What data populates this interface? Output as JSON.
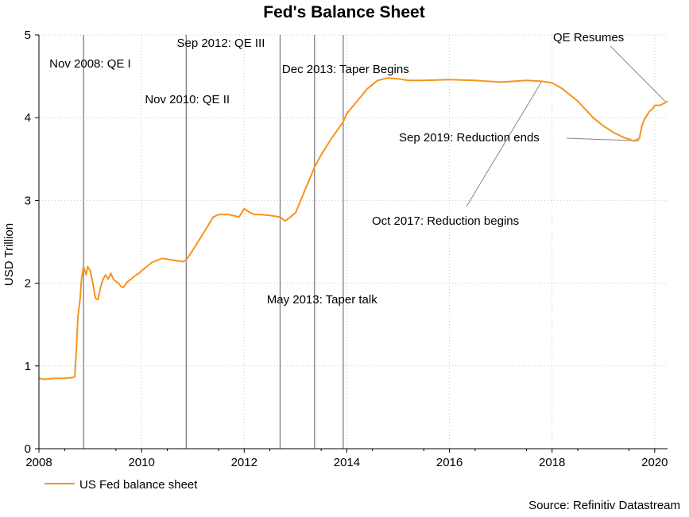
{
  "chart_data": {
    "type": "line",
    "title": "Fed's Balance Sheet",
    "xlabel": "",
    "ylabel": "USD Trillion",
    "xlim": [
      2008.0,
      2020.25
    ],
    "ylim": [
      0,
      5
    ],
    "xticks": [
      2008,
      2010,
      2012,
      2014,
      2016,
      2018,
      2020
    ],
    "yticks": [
      0,
      1,
      2,
      3,
      4,
      5
    ],
    "grid": true,
    "legend_position": "bottom-left",
    "source": "Source: Refinitiv Datastream",
    "colors": {
      "series": "#f7941d",
      "vlines": "#7f7f7f",
      "grid": "#c8c8c8",
      "axis": "#000000"
    },
    "series": [
      {
        "name": "US Fed balance sheet",
        "x": [
          2008.0,
          2008.1,
          2008.3,
          2008.5,
          2008.65,
          2008.7,
          2008.73,
          2008.76,
          2008.8,
          2008.83,
          2008.87,
          2008.92,
          2008.95,
          2009.0,
          2009.05,
          2009.1,
          2009.15,
          2009.2,
          2009.25,
          2009.3,
          2009.35,
          2009.4,
          2009.45,
          2009.5,
          2009.55,
          2009.6,
          2009.65,
          2009.7,
          2009.75,
          2009.8,
          2009.85,
          2009.9,
          2009.95,
          2010.0,
          2010.2,
          2010.4,
          2010.6,
          2010.8,
          2010.87,
          2011.0,
          2011.2,
          2011.4,
          2011.5,
          2011.7,
          2011.9,
          2012.0,
          2012.1,
          2012.2,
          2012.3,
          2012.5,
          2012.7,
          2012.8,
          2012.9,
          2013.0,
          2013.2,
          2013.37,
          2013.5,
          2013.7,
          2013.93,
          2014.0,
          2014.2,
          2014.4,
          2014.6,
          2014.8,
          2015.0,
          2015.2,
          2015.5,
          2016.0,
          2016.5,
          2017.0,
          2017.5,
          2017.8,
          2018.0,
          2018.2,
          2018.5,
          2018.8,
          2019.0,
          2019.2,
          2019.4,
          2019.6,
          2019.7,
          2019.75,
          2019.8,
          2019.9,
          2019.95,
          2020.0,
          2020.1,
          2020.2,
          2020.25
        ],
        "y": [
          0.85,
          0.84,
          0.85,
          0.85,
          0.86,
          0.87,
          1.2,
          1.6,
          1.8,
          2.05,
          2.2,
          2.1,
          2.2,
          2.15,
          2.0,
          1.82,
          1.8,
          1.95,
          2.05,
          2.1,
          2.05,
          2.12,
          2.05,
          2.02,
          2.0,
          1.96,
          1.95,
          2.0,
          2.03,
          2.05,
          2.08,
          2.1,
          2.12,
          2.15,
          2.25,
          2.3,
          2.28,
          2.26,
          2.28,
          2.4,
          2.6,
          2.8,
          2.83,
          2.83,
          2.8,
          2.9,
          2.86,
          2.83,
          2.83,
          2.82,
          2.8,
          2.75,
          2.8,
          2.85,
          3.15,
          3.4,
          3.55,
          3.75,
          3.95,
          4.05,
          4.2,
          4.35,
          4.45,
          4.48,
          4.47,
          4.45,
          4.45,
          4.46,
          4.45,
          4.43,
          4.45,
          4.44,
          4.42,
          4.35,
          4.2,
          4.0,
          3.9,
          3.82,
          3.76,
          3.72,
          3.75,
          3.9,
          3.98,
          4.08,
          4.1,
          4.15,
          4.15,
          4.18,
          4.2
        ]
      }
    ],
    "event_lines": [
      {
        "label": "Nov 2008: QE I",
        "x": 2008.87
      },
      {
        "label": "Nov 2010: QE II",
        "x": 2010.87
      },
      {
        "label": "Sep 2012: QE III",
        "x": 2012.7
      },
      {
        "label": "May 2013: Taper talk",
        "x": 2013.37
      },
      {
        "label": "Dec 2013: Taper Begins",
        "x": 2013.93
      }
    ],
    "annotations": [
      {
        "label": "Oct 2017: Reduction begins",
        "x": 2017.8,
        "y": 4.44
      },
      {
        "label": "Sep 2019: Reduction ends",
        "x": 2019.7,
        "y": 3.72
      },
      {
        "label": "QE Resumes",
        "x": 2020.2,
        "y": 4.2
      }
    ]
  }
}
